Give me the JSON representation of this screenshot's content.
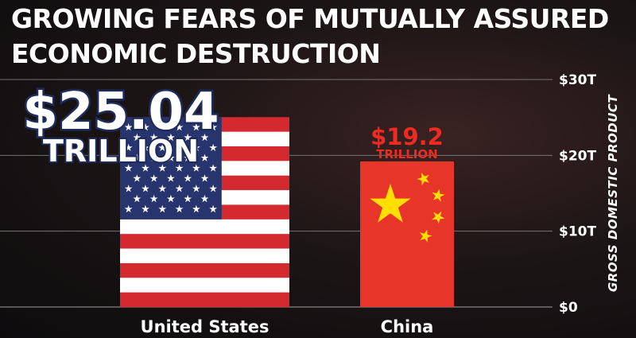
{
  "chart_data": {
    "type": "bar",
    "title": "GROWING FEARS OF MUTUALLY ASSURED ECONOMIC DESTRUCTION",
    "title_lines": [
      "GROWING FEARS OF MUTUALLY ASSURED",
      "ECONOMIC DESTRUCTION"
    ],
    "categories": [
      "United States",
      "China"
    ],
    "values": [
      25.04,
      19.2
    ],
    "value_labels": [
      {
        "value": "$25.04",
        "unit": "TRILLION"
      },
      {
        "value": "$19.2",
        "unit": "TRILLION"
      }
    ],
    "ylabel": "GROSS DOMESTIC PRODUCT",
    "ylim": [
      0,
      30
    ],
    "yticks": [
      0,
      10,
      20,
      30
    ],
    "ytick_labels": [
      "$0",
      "$10T",
      "$20T",
      "$30T"
    ],
    "y_axis_side": "right",
    "grid": true,
    "bar_fills": [
      "us-flag",
      "china-flag"
    ]
  },
  "colors": {
    "background": "#141213",
    "flag_red": "#d42a2f",
    "flag_blue": "#27346e",
    "china_red": "#e8352a",
    "china_star": "#ffde00",
    "label_red": "#ee2a22",
    "grid": "#8a8a8a"
  }
}
